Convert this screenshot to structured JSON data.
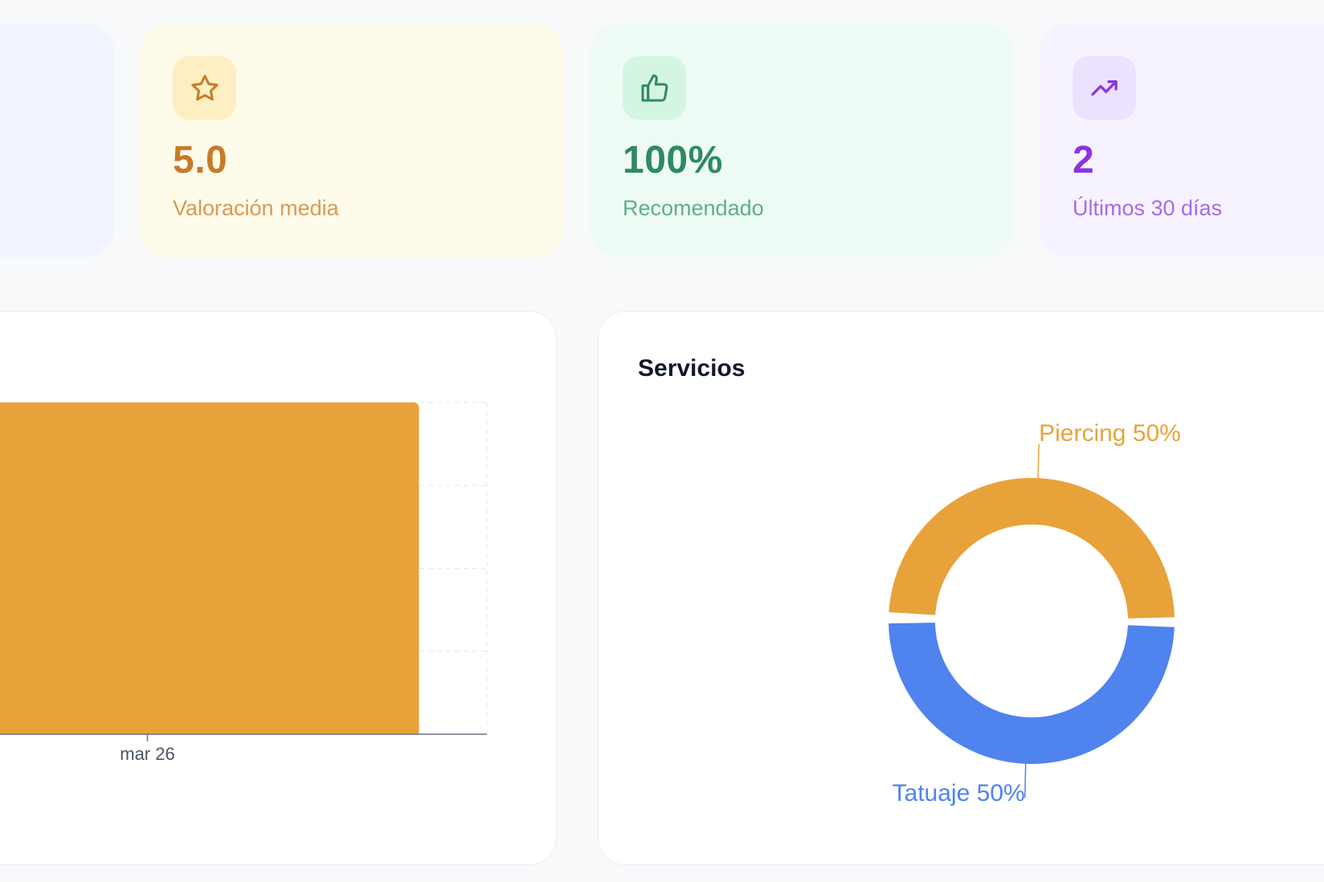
{
  "stats": {
    "rating": {
      "value": "5.0",
      "label": "Valoración media",
      "icon": "star-icon",
      "color": "#c97a28"
    },
    "recommended": {
      "value": "100%",
      "label": "Recomendado",
      "icon": "thumbs-up-icon",
      "color": "#2f8a5f"
    },
    "recent": {
      "value": "2",
      "label": "Últimos 30 días",
      "icon": "trending-up-icon",
      "color": "#8a34e0"
    }
  },
  "bar_panel": {
    "chart_data": {
      "type": "bar",
      "categories": [
        "mar 26"
      ],
      "values": [
        1
      ],
      "ylim": [
        0,
        1
      ],
      "grid": true,
      "bar_color": "#e8a23a"
    }
  },
  "services_panel": {
    "title": "Servicios",
    "chart_data": {
      "type": "pie",
      "donut": true,
      "slices": [
        {
          "name": "Piercing",
          "value": 50,
          "label": "Piercing 50%",
          "color": "#e8a23a"
        },
        {
          "name": "Tatuaje",
          "value": 50,
          "label": "Tatuaje 50%",
          "color": "#4f83ee"
        }
      ]
    }
  }
}
